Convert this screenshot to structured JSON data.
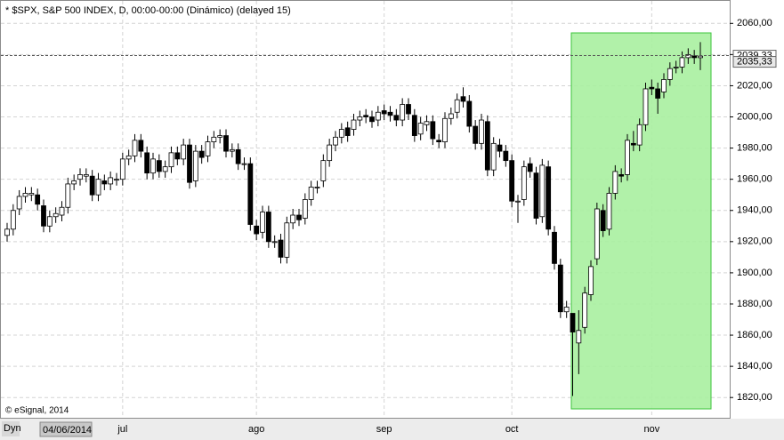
{
  "chart_data": {
    "type": "candlestick",
    "title": "* $SPX, S&P 500 INDEX, D, 00:00-00:00 (Dinámico) (delayed 15)",
    "copyright": "© eSignal, 2014",
    "mode_label": "Dyn",
    "cursor_date": "04/06/2014",
    "categories": [
      null,
      null,
      null,
      null,
      null,
      null,
      null,
      null,
      null,
      null,
      null,
      null,
      null,
      null,
      null,
      null,
      null,
      null,
      null,
      "jul",
      null,
      null,
      null,
      null,
      null,
      null,
      null,
      null,
      null,
      null,
      null,
      null,
      null,
      null,
      null,
      null,
      null,
      null,
      null,
      null,
      null,
      "ago",
      null,
      null,
      null,
      null,
      null,
      null,
      null,
      null,
      null,
      null,
      null,
      null,
      null,
      null,
      null,
      null,
      null,
      null,
      null,
      null,
      "sep",
      null,
      null,
      null,
      null,
      null,
      null,
      null,
      null,
      null,
      null,
      null,
      null,
      null,
      null,
      null,
      null,
      null,
      null,
      null,
      null,
      "oct",
      null,
      null,
      null,
      null,
      null,
      null,
      null,
      null,
      null,
      null,
      null,
      null,
      null,
      null,
      null,
      null,
      null,
      null,
      null,
      null,
      null,
      null,
      "nov",
      null,
      null,
      null,
      null,
      null,
      null,
      null,
      null
    ],
    "open": [
      1924,
      1928,
      1941,
      1949,
      1950,
      1950,
      1943,
      1930,
      1936,
      1937,
      1942,
      1957,
      1960,
      1962,
      1962,
      1950,
      1959,
      1957,
      1960,
      1960,
      1973,
      1975,
      1985,
      1977,
      1964,
      1972,
      1965,
      1968,
      1977,
      1973,
      1982,
      1959,
      1978,
      1975,
      1984,
      1987,
      1988,
      1978,
      1979,
      1970,
      1970,
      1930,
      1926,
      1939,
      1920,
      1921,
      1910,
      1932,
      1937,
      1935,
      1947,
      1955,
      1959,
      1972,
      1982,
      1987,
      1993,
      1992,
      1998,
      2001,
      2000,
      1998,
      2004,
      2003,
      2001,
      1998,
      2008,
      2001,
      1989,
      1995,
      1997,
      1985,
      1984,
      1999,
      2003,
      2013,
      2010,
      1994,
      1983,
      1997,
      1966,
      1982,
      1978,
      1972,
      1946,
      1947,
      1970,
      1964,
      1936,
      1968,
      1926,
      1905,
      1875,
      1874,
      1855,
      1865,
      1886,
      1909,
      1940,
      1928,
      1951,
      1963,
      1963,
      1983,
      1982,
      1995,
      2019,
      2018,
      2016,
      2024,
      2032,
      2032,
      2038,
      2039,
      2038
    ],
    "high": [
      1932,
      1944,
      1953,
      1955,
      1955,
      1954,
      1947,
      1940,
      1942,
      1946,
      1961,
      1963,
      1967,
      1967,
      1966,
      1964,
      1963,
      1965,
      1964,
      1977,
      1979,
      1989,
      1989,
      1981,
      1977,
      1976,
      1972,
      1981,
      1981,
      1986,
      1986,
      1982,
      1982,
      1988,
      1991,
      1992,
      1992,
      1983,
      1983,
      1974,
      1974,
      1934,
      1943,
      1943,
      1924,
      1925,
      1936,
      1941,
      1941,
      1951,
      1959,
      1959,
      1976,
      1986,
      1991,
      1996,
      1997,
      2002,
      2004,
      2005,
      2004,
      2007,
      2008,
      2007,
      2005,
      2012,
      2012,
      2005,
      2000,
      2001,
      2001,
      1989,
      2003,
      2006,
      2015,
      2019,
      2014,
      1998,
      2002,
      2001,
      1987,
      1986,
      1982,
      1976,
      1950,
      1972,
      1974,
      1968,
      1973,
      1972,
      1930,
      1909,
      1882,
      1874,
      1876,
      1891,
      1908,
      1945,
      1944,
      1955,
      1969,
      1967,
      1989,
      1991,
      1999,
      2022,
      2024,
      2022,
      2028,
      2035,
      2036,
      2042,
      2044,
      2043,
      2048
    ],
    "low": [
      1920,
      1924,
      1937,
      1945,
      1946,
      1940,
      1926,
      1926,
      1932,
      1933,
      1938,
      1953,
      1956,
      1958,
      1946,
      1946,
      1953,
      1953,
      1956,
      1956,
      1969,
      1971,
      1974,
      1960,
      1960,
      1961,
      1961,
      1964,
      1969,
      1969,
      1954,
      1955,
      1970,
      1971,
      1980,
      1983,
      1974,
      1974,
      1966,
      1966,
      1927,
      1921,
      1922,
      1916,
      1916,
      1906,
      1906,
      1928,
      1930,
      1931,
      1943,
      1951,
      1955,
      1968,
      1978,
      1983,
      1984,
      1988,
      1994,
      1996,
      1993,
      1994,
      1998,
      1997,
      1994,
      1994,
      1998,
      1984,
      1985,
      1991,
      1982,
      1980,
      1980,
      1995,
      1999,
      2006,
      1990,
      1979,
      1979,
      1962,
      1962,
      1974,
      1968,
      1942,
      1932,
      1943,
      1961,
      1931,
      1932,
      1924,
      1902,
      1871,
      1871,
      1821,
      1835,
      1861,
      1882,
      1905,
      1923,
      1924,
      1947,
      1958,
      1959,
      1978,
      1978,
      1991,
      2014,
      2002,
      2012,
      2020,
      2028,
      2028,
      2034,
      2034,
      2030
    ],
    "close": [
      1928,
      1940,
      1949,
      1951,
      1951,
      1944,
      1930,
      1936,
      1938,
      1942,
      1957,
      1959,
      1963,
      1963,
      1950,
      1960,
      1957,
      1961,
      1960,
      1973,
      1975,
      1985,
      1978,
      1964,
      1973,
      1965,
      1968,
      1977,
      1973,
      1982,
      1958,
      1978,
      1974,
      1984,
      1987,
      1988,
      1978,
      1979,
      1970,
      1970,
      1931,
      1925,
      1939,
      1920,
      1920,
      1910,
      1932,
      1937,
      1934,
      1947,
      1955,
      1955,
      1972,
      1982,
      1987,
      1992,
      1988,
      1998,
      2000,
      2000,
      1997,
      2003,
      2002,
      2001,
      1998,
      2008,
      2002,
      1988,
      1996,
      1997,
      1986,
      1984,
      1999,
      2002,
      2011,
      2010,
      1994,
      1983,
      1998,
      1966,
      1983,
      1978,
      1972,
      1946,
      1946,
      1968,
      1965,
      1935,
      1969,
      1928,
      1906,
      1875,
      1878,
      1862,
      1863,
      1887,
      1904,
      1941,
      1927,
      1951,
      1965,
      1962,
      1985,
      1982,
      1995,
      2018,
      2018,
      2012,
      2024,
      2031,
      2032,
      2038,
      2040,
      2038,
      2039
    ],
    "up_color": "#ffffff",
    "down_color": "#000000",
    "ylim": [
      1807,
      2075
    ],
    "yticks": [
      {
        "value": 1820,
        "label": "1820,00"
      },
      {
        "value": 1840,
        "label": "1840,00"
      },
      {
        "value": 1860,
        "label": "1860,00"
      },
      {
        "value": 1880,
        "label": "1880,00"
      },
      {
        "value": 1900,
        "label": "1900,00"
      },
      {
        "value": 1920,
        "label": "1920,00"
      },
      {
        "value": 1940,
        "label": "1940,00"
      },
      {
        "value": 1960,
        "label": "1960,00"
      },
      {
        "value": 1980,
        "label": "1980,00"
      },
      {
        "value": 2000,
        "label": "2000,00"
      },
      {
        "value": 2020,
        "label": "2020,00"
      },
      {
        "value": 2040,
        "label": "2040,00"
      },
      {
        "value": 2060,
        "label": "2060,00"
      }
    ],
    "price_labels": [
      {
        "value": 2039.33,
        "label": "2039,33"
      },
      {
        "value": 2035.33,
        "label": "2035,33"
      }
    ],
    "grid": true
  }
}
